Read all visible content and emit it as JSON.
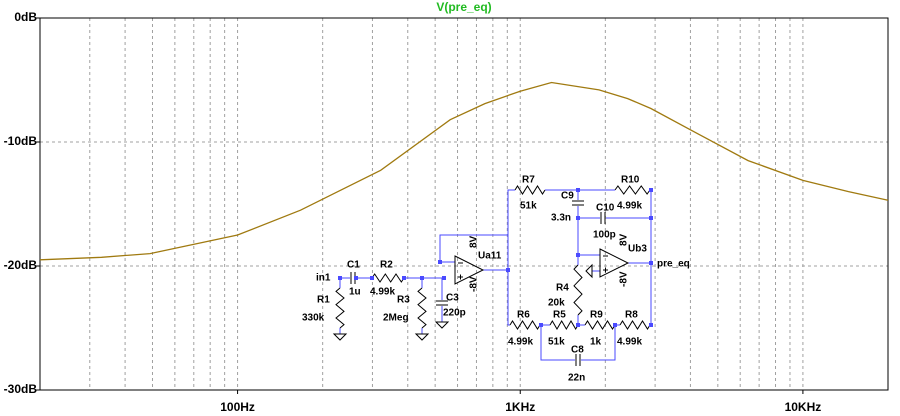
{
  "chart_data": {
    "type": "line",
    "title": "V(pre_eq)",
    "title_color": "#22bb22",
    "x": [
      20,
      33,
      49,
      100,
      167,
      320,
      565,
      750,
      1000,
      1290,
      1900,
      2400,
      2900,
      4300,
      6400,
      10000,
      14500,
      20000
    ],
    "series": [
      {
        "name": "V(pre_eq)",
        "color": "#a07a10",
        "values": [
          -19.5,
          -19.3,
          -19.0,
          -17.5,
          -15.5,
          -12.3,
          -8.2,
          -6.9,
          -5.9,
          -5.2,
          -5.8,
          -6.5,
          -7.3,
          -9.4,
          -11.5,
          -13.1,
          -14.0,
          -14.7
        ]
      }
    ],
    "xlim": [
      20,
      20000
    ],
    "xscale": "log",
    "xticks": [
      {
        "value": 100,
        "label": "100Hz"
      },
      {
        "value": 1000,
        "label": "1KHz"
      },
      {
        "value": 10000,
        "label": "10KHz"
      }
    ],
    "x_minor_ticks": [
      30,
      40,
      50,
      60,
      70,
      80,
      90,
      200,
      300,
      400,
      500,
      600,
      700,
      800,
      900,
      2000,
      3000,
      4000,
      5000,
      6000,
      7000,
      8000,
      9000
    ],
    "ylim": [
      -30,
      0
    ],
    "yticks": [
      {
        "value": -30,
        "label": "-30dB"
      },
      {
        "value": -20,
        "label": "-20dB"
      },
      {
        "value": -10,
        "label": "-10dB"
      },
      {
        "value": 0,
        "label": "0dB"
      }
    ],
    "grid": true
  },
  "schematic": {
    "labels": [
      "in1",
      "C1",
      "1u",
      "R2",
      "4.99k",
      "R1",
      "330k",
      "R3",
      "2Meg",
      "C3",
      "220p",
      "Ua11",
      "8V",
      "-8V",
      "R7",
      "51k",
      "C9",
      "3.3n",
      "R10",
      "4.99k",
      "C10",
      "100p",
      "Ub3",
      "8V",
      "-8V",
      "pre_eq",
      "R4",
      "20k",
      "R6",
      "4.99k",
      "R5",
      "51k",
      "R9",
      "1k",
      "R8",
      "4.99k",
      "C8",
      "22n"
    ]
  }
}
